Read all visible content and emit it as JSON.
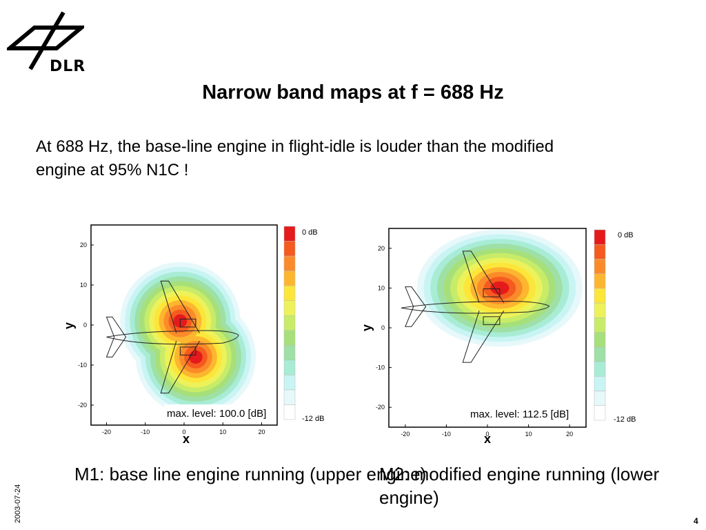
{
  "logo": {
    "text": "DLR"
  },
  "slide": {
    "title": "Narrow band maps at f = 688 Hz",
    "statement": "At 688 Hz, the base-line engine in flight-idle is louder than the modified engine at 95% N1C !",
    "date": "2003-07-24",
    "page_number": "4"
  },
  "captions": [
    "M1: base line engine running (upper engine)",
    "M2: modified engine running (lower engine)"
  ],
  "colors": {
    "scale": [
      "#e41a1c",
      "#f55a1f",
      "#fb8b2a",
      "#fdb62f",
      "#fde63a",
      "#eef25a",
      "#c8ec68",
      "#a7e07a",
      "#9ee0a5",
      "#a8ecd6",
      "#c9f4f4",
      "#e6f8fa",
      "#ffffff"
    ]
  },
  "chart_data": [
    {
      "type": "heatmap",
      "xlabel": "x",
      "ylabel": "y",
      "xlim": [
        -24,
        24
      ],
      "ylim": [
        -25,
        25
      ],
      "x_ticks": [
        "-20",
        "-10",
        "0",
        "10",
        "20"
      ],
      "y_ticks": [
        "20",
        "10",
        "0",
        "-10",
        "-20"
      ],
      "x_tick_values": [
        -20,
        -10,
        0,
        10,
        20
      ],
      "y_tick_values": [
        20,
        10,
        0,
        -10,
        -20
      ],
      "annotation": "max. level: 100.0 [dB]",
      "colorbar": {
        "top_label": "0 dB",
        "bottom_label": "-12 dB",
        "levels": 13
      },
      "sources": [
        {
          "x": -1,
          "y": 1,
          "level_db": 0
        },
        {
          "x": 3,
          "y": -8,
          "level_db": 0
        }
      ]
    },
    {
      "type": "heatmap",
      "xlabel": "x",
      "ylabel": "y",
      "xlim": [
        -24,
        24
      ],
      "ylim": [
        -25,
        25
      ],
      "x_ticks": [
        "-20",
        "-10",
        "0",
        "10",
        "20"
      ],
      "y_ticks": [
        "20",
        "10",
        "0",
        "-10",
        "-20"
      ],
      "x_tick_values": [
        -20,
        -10,
        0,
        10,
        20
      ],
      "y_tick_values": [
        20,
        10,
        0,
        -10,
        -20
      ],
      "annotation": "max. level: 112.5 [dB]",
      "colorbar": {
        "top_label": "0 dB",
        "bottom_label": "-12 dB",
        "levels": 13
      },
      "sources": [
        {
          "x": 3,
          "y": 10,
          "level_db": 0
        }
      ]
    }
  ]
}
